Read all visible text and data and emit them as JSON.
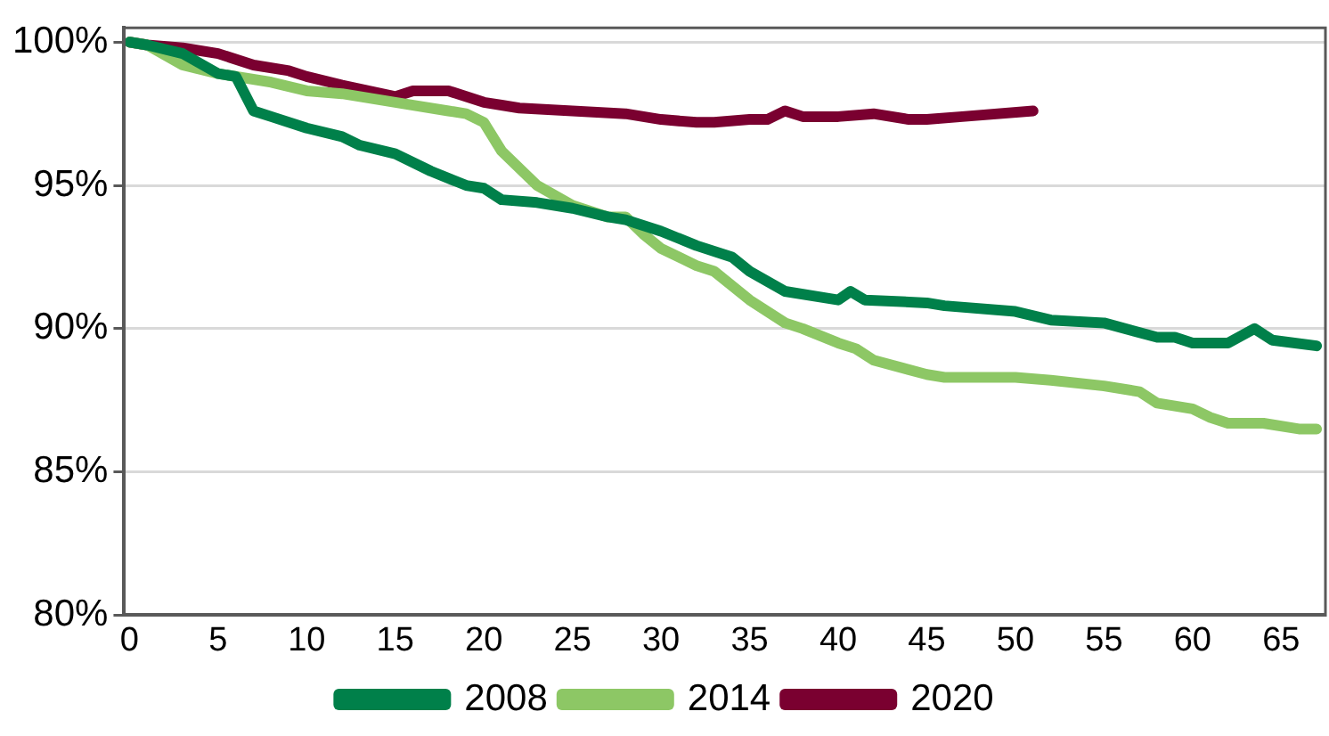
{
  "chart_data": {
    "type": "line",
    "xlim": [
      -0.3,
      67.5
    ],
    "xticks": [
      0,
      5,
      10,
      15,
      20,
      25,
      30,
      35,
      40,
      45,
      50,
      55,
      60,
      65
    ],
    "ylim": [
      80,
      100.5
    ],
    "yticks": [
      {
        "value": 80,
        "label": "80%"
      },
      {
        "value": 85,
        "label": "85%"
      },
      {
        "value": 90,
        "label": "90%"
      },
      {
        "value": 95,
        "label": "95%"
      },
      {
        "value": 100,
        "label": "100%"
      }
    ],
    "grid": "y",
    "legend": "bottom",
    "marker": "none",
    "line_style": "solid",
    "series": [
      {
        "name": "2008",
        "color": "#00804a",
        "x": [
          0,
          1,
          3,
          5,
          6,
          7,
          8,
          10,
          12,
          13,
          15,
          17,
          19,
          20,
          21,
          23,
          25,
          27,
          28,
          30,
          32,
          34,
          35,
          37,
          40,
          40.7,
          41.5,
          45,
          46,
          50,
          52,
          55,
          58,
          59,
          60,
          62,
          63.5,
          64.5,
          67
        ],
        "values": [
          100,
          99.9,
          99.6,
          98.9,
          98.8,
          97.6,
          97.4,
          97.0,
          96.7,
          96.4,
          96.1,
          95.5,
          95.0,
          94.9,
          94.5,
          94.4,
          94.2,
          93.9,
          93.8,
          93.4,
          92.9,
          92.5,
          92.0,
          91.3,
          91.0,
          91.3,
          91.0,
          90.9,
          90.8,
          90.6,
          90.3,
          90.2,
          89.7,
          89.7,
          89.5,
          89.5,
          90.0,
          89.6,
          89.4
        ]
      },
      {
        "name": "2014",
        "color": "#8dc765",
        "x": [
          0,
          1,
          3,
          5,
          8,
          10,
          12,
          15,
          18,
          19,
          20,
          21,
          23,
          25,
          27,
          28,
          29,
          30,
          32,
          33,
          35,
          37,
          38,
          40,
          41,
          42,
          45,
          46,
          50,
          52,
          55,
          57,
          58,
          60,
          61,
          62,
          64,
          66,
          67
        ],
        "values": [
          100,
          99.9,
          99.2,
          98.9,
          98.6,
          98.3,
          98.2,
          97.9,
          97.6,
          97.5,
          97.2,
          96.2,
          95.0,
          94.3,
          93.9,
          93.9,
          93.3,
          92.8,
          92.2,
          92.0,
          91.0,
          90.2,
          90.0,
          89.5,
          89.3,
          88.9,
          88.4,
          88.3,
          88.3,
          88.2,
          88.0,
          87.8,
          87.4,
          87.2,
          86.9,
          86.7,
          86.7,
          86.5,
          86.5
        ]
      },
      {
        "name": "2020",
        "color": "#7a0030",
        "x": [
          0,
          1,
          3,
          5,
          7,
          9,
          10,
          12,
          15,
          16,
          18,
          20,
          21,
          22,
          25,
          28,
          30,
          32,
          33,
          35,
          36,
          37,
          38,
          40,
          42,
          44,
          45,
          47,
          51
        ],
        "values": [
          100,
          99.9,
          99.8,
          99.6,
          99.2,
          99.0,
          98.8,
          98.5,
          98.1,
          98.3,
          98.3,
          97.9,
          97.8,
          97.7,
          97.6,
          97.5,
          97.3,
          97.2,
          97.2,
          97.3,
          97.3,
          97.6,
          97.4,
          97.4,
          97.5,
          97.3,
          97.3,
          97.4,
          97.6
        ]
      }
    ]
  }
}
